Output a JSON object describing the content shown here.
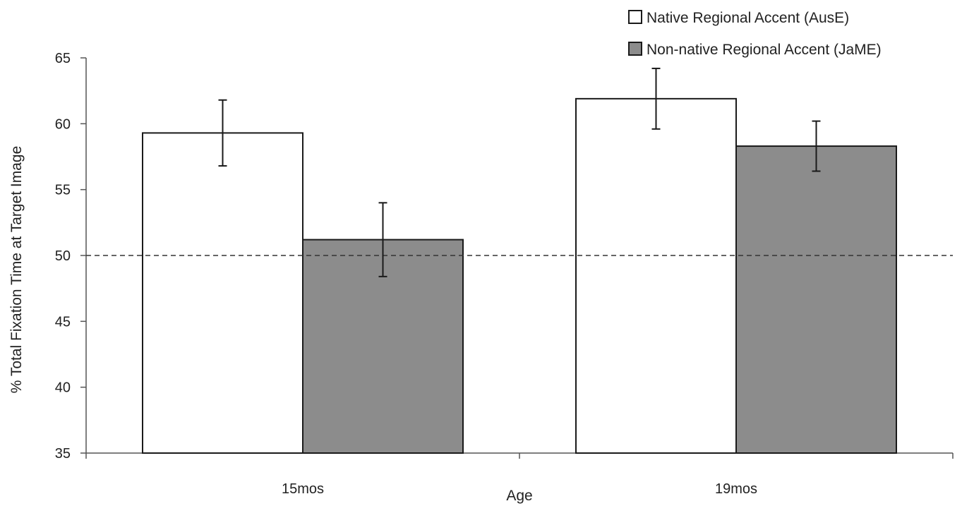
{
  "chart_data": {
    "type": "bar",
    "categories": [
      "15mos",
      "19mos"
    ],
    "series": [
      {
        "name": "Native Regional Accent (AusE)",
        "color": "#ffffff",
        "values": [
          59.3,
          61.9
        ],
        "error": [
          2.5,
          2.3
        ]
      },
      {
        "name": "Non-native Regional Accent (JaME)",
        "color": "#8c8c8c",
        "values": [
          51.2,
          58.3
        ],
        "error": [
          2.8,
          1.9
        ]
      }
    ],
    "xlabel": "Age",
    "ylabel": "% Total Fixation Time at Target Image",
    "ylim": [
      35,
      65
    ],
    "yticks": [
      "35",
      "40",
      "45",
      "50",
      "55",
      "60",
      "65"
    ],
    "reference_line": {
      "value": 50,
      "style": "dashed"
    },
    "legend_position": "top-right",
    "grid": false
  }
}
